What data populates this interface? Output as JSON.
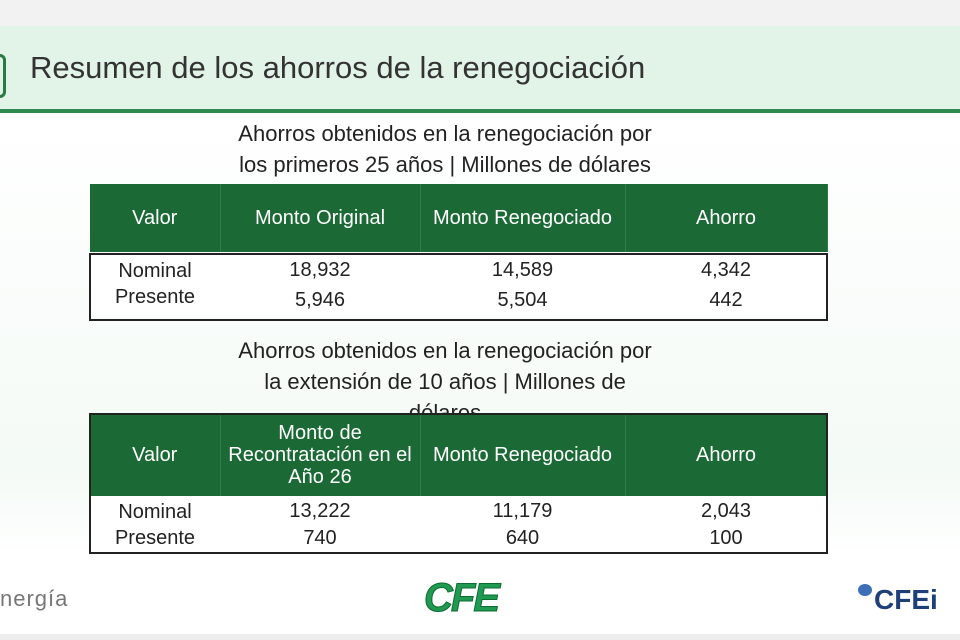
{
  "title": "Resumen de los ahorros de la renegociación",
  "section1": {
    "subtitle_lines": [
      "Ahorros obtenidos en la renegociación por",
      "los primeros 25 años | Millones de dólares"
    ],
    "headers": [
      "Valor",
      "Monto Original",
      "Monto Renegociado",
      "Ahorro"
    ],
    "rows": [
      [
        "Nominal",
        "18,932",
        "14,589",
        "4,342"
      ],
      [
        "Presente",
        "5,946",
        "5,504",
        "442"
      ]
    ]
  },
  "section2": {
    "subtitle_lines": [
      "Ahorros obtenidos en la renegociación por",
      "la extensión de 10 años | Millones de",
      "dólares"
    ],
    "headers": [
      "Valor",
      "Monto de Recontratación en el Año 26",
      "Monto Renegociado",
      "Ahorro"
    ],
    "rows": [
      [
        "Nominal",
        "13,222",
        "11,179",
        "2,043"
      ],
      [
        "Presente",
        "740",
        "640",
        "100"
      ]
    ]
  },
  "footer": {
    "left_logo": "nergía",
    "center_logo": "CFE",
    "right_logo": "CFEi"
  },
  "colors": {
    "header_green": "#1b6a36",
    "band": "#e2f3e7",
    "rule": "#2f8a50"
  }
}
